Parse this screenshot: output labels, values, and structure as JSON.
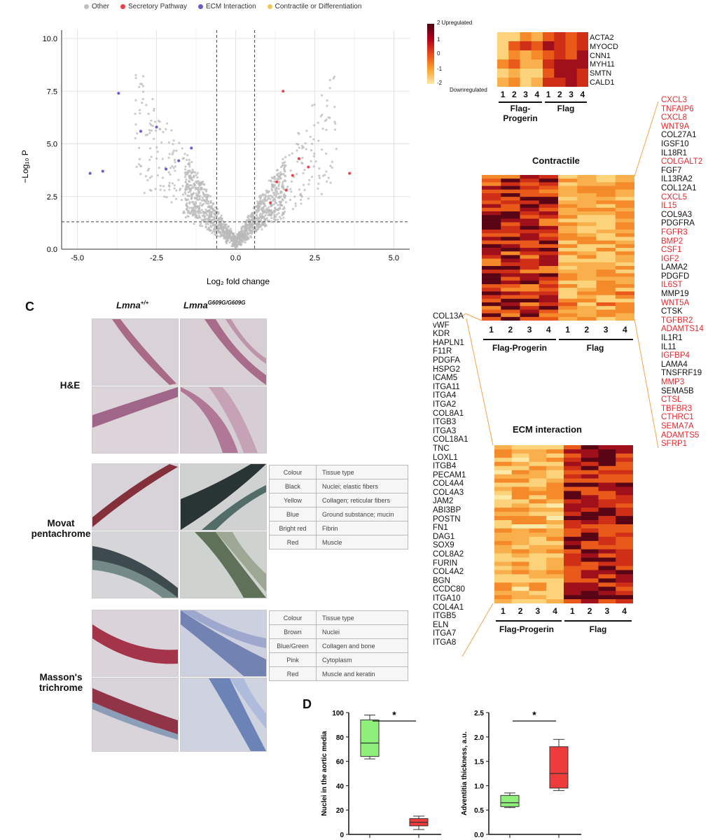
{
  "volcano": {
    "legend": [
      {
        "label": "Other",
        "color": "#bfbfbf"
      },
      {
        "label": "Secretory Pathway",
        "color": "#e8424a"
      },
      {
        "label": "ECM Interaction",
        "color": "#6a5acd"
      },
      {
        "label": "Contractile or Differentiation",
        "color": "#f2c75a"
      }
    ],
    "ylabel": "−Log₁₀ P",
    "xlabel": "Log₂ fold change",
    "xticks": [
      "-5.0",
      "-2.5",
      "0.0",
      "2.5",
      "5.0"
    ],
    "yticks": [
      "0.0",
      "2.5",
      "5.0",
      "7.5",
      "10.0"
    ]
  },
  "scale": {
    "top_label": "2 Upregulated",
    "bottom_label": "Downregulated",
    "ticks": [
      "1",
      "0",
      "-1",
      "-2"
    ]
  },
  "heatmap_small": {
    "genes": [
      "ACTA2",
      "MYOCD",
      "CNN1",
      "MYH11",
      "SMTN",
      "CALD1"
    ],
    "cols": [
      "1",
      "2",
      "3",
      "4",
      "1",
      "2",
      "3",
      "4"
    ],
    "group1": "Flag-\nProgerin",
    "group2": "Flag"
  },
  "contractile": {
    "title": "Contractile",
    "cols": [
      "1",
      "2",
      "3",
      "4",
      "1",
      "2",
      "3",
      "4"
    ],
    "group1": "Flag-Progerin",
    "group2": "Flag",
    "genes": [
      {
        "name": "CXCL3",
        "red": true
      },
      {
        "name": "TNFAIP6",
        "red": true
      },
      {
        "name": "CXCL8",
        "red": true
      },
      {
        "name": "WNT9A",
        "red": true
      },
      {
        "name": "COL27A1",
        "red": false
      },
      {
        "name": "IGSF10",
        "red": false
      },
      {
        "name": "IL18R1",
        "red": false
      },
      {
        "name": "COLGALT2",
        "red": true
      },
      {
        "name": "FGF7",
        "red": false
      },
      {
        "name": "IL13RA2",
        "red": false
      },
      {
        "name": "COL12A1",
        "red": false
      },
      {
        "name": "CXCL5",
        "red": true
      },
      {
        "name": "IL15",
        "red": true
      },
      {
        "name": "COL9A3",
        "red": false
      },
      {
        "name": "PDGFRA",
        "red": false
      },
      {
        "name": "FGFR3",
        "red": true
      },
      {
        "name": "BMP2",
        "red": true
      },
      {
        "name": "CSF1",
        "red": true
      },
      {
        "name": "IGF2",
        "red": true
      },
      {
        "name": "LAMA2",
        "red": false
      },
      {
        "name": "PDGFD",
        "red": false
      },
      {
        "name": "IL6ST",
        "red": true
      },
      {
        "name": "MMP19",
        "red": false
      },
      {
        "name": "WNT5A",
        "red": true
      },
      {
        "name": "CTSK",
        "red": false
      },
      {
        "name": "TGFBR2",
        "red": true
      },
      {
        "name": "ADAMTS14",
        "red": true
      },
      {
        "name": "IL1R1",
        "red": false
      },
      {
        "name": "IL11",
        "red": false
      },
      {
        "name": "IGFBP4",
        "red": true
      },
      {
        "name": "LAMA4",
        "red": false
      },
      {
        "name": "TNSFRF19",
        "red": false
      },
      {
        "name": "MMP3",
        "red": true
      },
      {
        "name": "SEMA5B",
        "red": false
      },
      {
        "name": "CTSL",
        "red": true
      },
      {
        "name": "TBFBR3",
        "red": true
      },
      {
        "name": "CTHRC1",
        "red": true
      },
      {
        "name": "SEMA7A",
        "red": true
      },
      {
        "name": "ADAMTS5",
        "red": true
      },
      {
        "name": "SFRP1",
        "red": true
      }
    ]
  },
  "ecm": {
    "title": "ECM interaction",
    "cols": [
      "1",
      "2",
      "3",
      "4",
      "1",
      "2",
      "3",
      "4"
    ],
    "group1": "Flag-Progerin",
    "group2": "Flag",
    "genes": [
      "COL13A",
      "vWF",
      "KDR",
      "HAPLN1",
      "F11R",
      "PDGFA",
      "HSPG2",
      "ICAM5",
      "ITGA11",
      "ITGA4",
      "ITGA2",
      "COL8A1",
      "ITGB3",
      "ITGA3",
      "COL18A1",
      "TNC",
      "LOXL1",
      "ITGB4",
      "PECAM1",
      "COL4A4",
      "COL4A3",
      "JAM2",
      "ABI3BP",
      "POSTN",
      "FN1",
      "DAG1",
      "SOX9",
      "COL8A2",
      "FURIN",
      "COL4A2",
      "BGN",
      "CCDC80",
      "ITGA10",
      "COL4A1",
      "ITGB5",
      "ELN",
      "ITGA7",
      "ITGA8"
    ]
  },
  "panel_c": {
    "letter": "C",
    "col1": "Lmna",
    "col1_sup": "+/+",
    "col2": "Lmna",
    "col2_sup": "G609G/G609G",
    "rows": [
      "H&E",
      "Movat\npentachrome",
      "Masson's\ntrichrome"
    ],
    "movat_table": {
      "header": [
        "Colour",
        "Tissue type"
      ],
      "rows": [
        [
          "Black",
          "Nuclei; elastic fibers"
        ],
        [
          "Yellow",
          "Collagen; reticular fibers"
        ],
        [
          "Blue",
          "Ground substance; mucin"
        ],
        [
          "Bright red",
          "Fibrin"
        ],
        [
          "Red",
          "Muscle"
        ]
      ]
    },
    "masson_table": {
      "header": [
        "Colour",
        "Tissue type"
      ],
      "rows": [
        [
          "Brown",
          "Nuclei"
        ],
        [
          "Blue/Green",
          "Collagen and bone"
        ],
        [
          "Pink",
          "Cytoplasm"
        ],
        [
          "Red",
          "Muscle and keratin"
        ]
      ]
    }
  },
  "panel_d": {
    "letter": "D",
    "chart_data": [
      {
        "type": "box",
        "ylabel": "Nuclei in the aortic media",
        "ylim": [
          0,
          100
        ],
        "yticks": [
          "0",
          "20",
          "40",
          "60",
          "80",
          "100"
        ],
        "significance": "*",
        "boxes": [
          {
            "min": 62,
            "q1": 64,
            "median": 75,
            "q3": 94,
            "max": 98,
            "color": "#8ef07a"
          },
          {
            "min": 4,
            "q1": 7,
            "median": 10,
            "q3": 13,
            "max": 15,
            "color": "#ee3b3b"
          }
        ]
      },
      {
        "type": "box",
        "ylabel": "Adventitia thickness, a.u.",
        "ylim": [
          0,
          2.5
        ],
        "yticks": [
          "0.0",
          "0.5",
          "1.0",
          "1.5",
          "2.0",
          "2.5"
        ],
        "significance": "*",
        "boxes": [
          {
            "min": 0.55,
            "q1": 0.57,
            "median": 0.65,
            "q3": 0.8,
            "max": 0.85,
            "color": "#8ef07a"
          },
          {
            "min": 0.9,
            "q1": 0.95,
            "median": 1.25,
            "q3": 1.8,
            "max": 1.95,
            "color": "#ee3b3b"
          }
        ]
      }
    ]
  }
}
